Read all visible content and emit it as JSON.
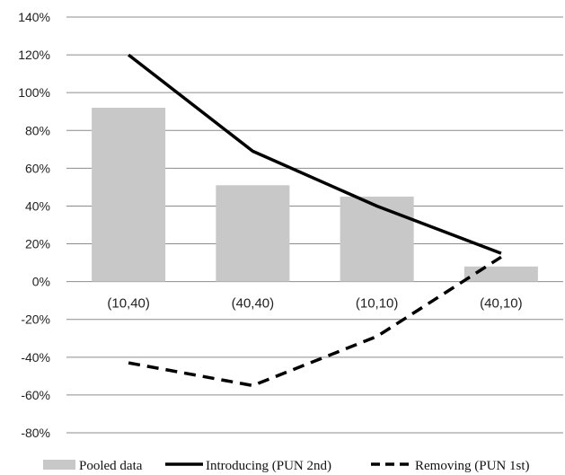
{
  "chart_data": {
    "type": "bar",
    "categories": [
      "(10,40)",
      "(40,40)",
      "(10,10)",
      "(40,10)"
    ],
    "series": [
      {
        "name": "Pooled data",
        "kind": "bar",
        "values": [
          92,
          51,
          45,
          8
        ],
        "color": "#c8c8c8"
      },
      {
        "name": "Introducing (PUN 2nd)",
        "kind": "line",
        "style": "solid",
        "values": [
          120,
          69,
          40,
          15
        ],
        "color": "#000000"
      },
      {
        "name": "Removing (PUN 1st)",
        "kind": "line",
        "style": "dashed",
        "values": [
          -43,
          -55,
          -29,
          13
        ],
        "color": "#000000"
      }
    ],
    "ylim": [
      -80,
      140
    ],
    "yticks": [
      140,
      120,
      100,
      80,
      60,
      40,
      20,
      0,
      -20,
      -40,
      -60,
      -80
    ],
    "ytick_labels": [
      "140%",
      "120%",
      "100%",
      "80%",
      "60%",
      "40%",
      "20%",
      "0%",
      "-20%",
      "-40%",
      "-60%",
      "-80%"
    ],
    "grid": true,
    "legend_position": "bottom"
  }
}
